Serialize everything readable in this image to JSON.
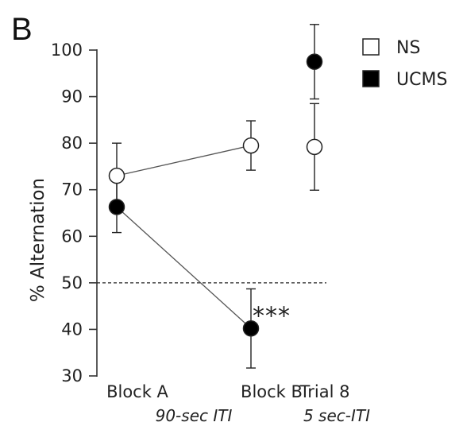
{
  "panel_label": "B",
  "chart_data": {
    "type": "line",
    "ylabel": "% Alternation",
    "xlabel": "",
    "ylim": [
      30,
      100
    ],
    "yticks": [
      30,
      40,
      50,
      60,
      70,
      80,
      90,
      100
    ],
    "categories": [
      "Block A",
      "Block B",
      "Trial 8"
    ],
    "category_sublabels": [
      {
        "text": "90-sec ITI",
        "under": [
          "Block A",
          "Block B"
        ]
      },
      {
        "text": "5 sec-ITI",
        "under": [
          "Trial 8"
        ]
      }
    ],
    "reference_line": {
      "y": 50,
      "style": "dashed"
    },
    "legend_position": "top-right",
    "series": [
      {
        "name": "NS",
        "marker": "open-circle",
        "color": "#ffffff",
        "values": [
          73,
          79.5,
          79.2
        ],
        "error": [
          7,
          5.3,
          9.3
        ],
        "connected": [
          true,
          true,
          false
        ]
      },
      {
        "name": "UCMS",
        "marker": "filled-circle",
        "color": "#000000",
        "values": [
          66.3,
          40.2,
          97.5
        ],
        "error": [
          5.5,
          8.5,
          8
        ],
        "connected": [
          true,
          true,
          false
        ]
      }
    ],
    "annotations": [
      {
        "text": "***",
        "series": "UCMS",
        "category": "Block B"
      }
    ]
  }
}
